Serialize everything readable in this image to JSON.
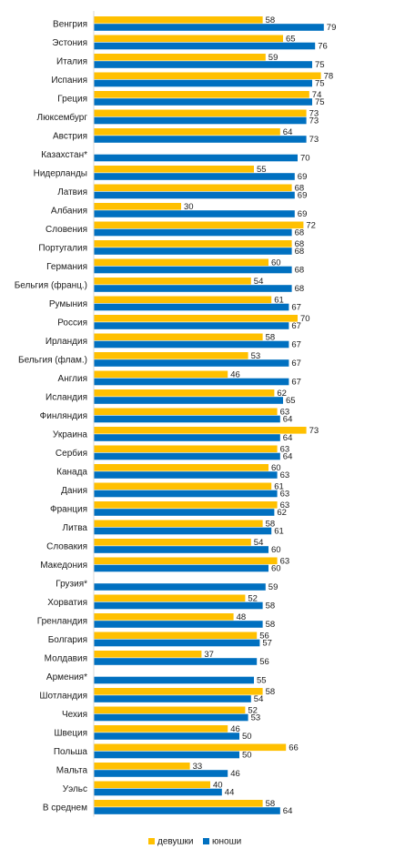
{
  "chart_data": {
    "type": "bar",
    "orientation": "horizontal",
    "categories": [
      "Венгрия",
      "Эстония",
      "Италия",
      "Испания",
      "Греция",
      "Люксембург",
      "Австрия",
      "Казахстан*",
      "Нидерланды",
      "Латвия",
      "Албания",
      "Словения",
      "Португалия",
      "Германия",
      "Бельгия (франц.)",
      "Румыния",
      "Россия",
      "Ирландия",
      "Бельгия (флам.)",
      "Англия",
      "Исландия",
      "Финляндия",
      "Украина",
      "Сербия",
      "Канада",
      "Дания",
      "Франция",
      "Литва",
      "Словакия",
      "Македония",
      "Грузия*",
      "Хорватия",
      "Гренландия",
      "Болгария",
      "Молдавия",
      "Армения*",
      "Шотландия",
      "Чехия",
      "Швеция",
      "Польша",
      "Мальта",
      "Уэльс",
      "В среднем"
    ],
    "series": [
      {
        "name": "девушки",
        "color": "#FFC000",
        "values": [
          58,
          65,
          59,
          78,
          74,
          73,
          64,
          null,
          55,
          68,
          30,
          72,
          68,
          60,
          54,
          61,
          70,
          58,
          53,
          46,
          62,
          63,
          73,
          63,
          60,
          61,
          63,
          58,
          54,
          63,
          null,
          52,
          48,
          56,
          37,
          null,
          58,
          52,
          46,
          66,
          33,
          40,
          58
        ]
      },
      {
        "name": "юноши",
        "color": "#0070C0",
        "values": [
          79,
          76,
          75,
          75,
          75,
          73,
          73,
          70,
          69,
          69,
          69,
          68,
          68,
          68,
          68,
          67,
          67,
          67,
          67,
          67,
          65,
          64,
          64,
          64,
          63,
          63,
          62,
          61,
          60,
          60,
          59,
          58,
          58,
          57,
          56,
          55,
          54,
          53,
          50,
          50,
          46,
          44,
          64
        ]
      }
    ],
    "xlim": [
      0,
      80
    ],
    "grid": false,
    "legend_position": "bottom"
  }
}
